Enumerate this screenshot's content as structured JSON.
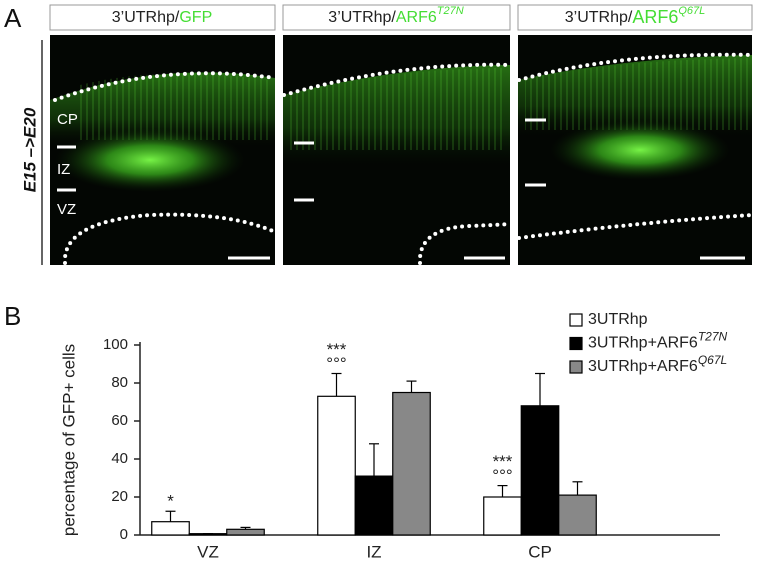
{
  "panel_a": {
    "label": "A",
    "condition": "E15 –>E20",
    "panels": [
      {
        "prefix": "3’UTRhp/",
        "name": "GFP"
      },
      {
        "prefix": "3’UTRhp/",
        "name": "ARF6",
        "sup": "T27N"
      },
      {
        "prefix": "3’UTRhp/",
        "name": "ARF6",
        "sup": "Q67L"
      }
    ],
    "layers": [
      "CP",
      "IZ",
      "VZ"
    ]
  },
  "chart_data": {
    "type": "bar",
    "label": "B",
    "y_label": "percentage of GFP+ cells",
    "categories": [
      "VZ",
      "IZ",
      "CP"
    ],
    "ylim": [
      0,
      100
    ],
    "yticks": [
      0,
      20,
      40,
      60,
      80,
      100
    ],
    "series": [
      {
        "name": "3UTRhp",
        "color": "#ffffff",
        "values": [
          7,
          73,
          20
        ],
        "errors": [
          5.5,
          12,
          6
        ],
        "significance": [
          [
            "*"
          ],
          [
            "***",
            "°°°"
          ],
          [
            "***",
            "°°°"
          ]
        ]
      },
      {
        "name": "3UTRhp+ARF6",
        "sup": "T27N",
        "color": "#000000",
        "values": [
          0.7,
          31,
          68
        ],
        "errors": [
          0,
          17,
          17
        ]
      },
      {
        "name": "3UTRhp+ARF6",
        "sup": "Q67L",
        "color": "#888888",
        "values": [
          3,
          75,
          21
        ],
        "errors": [
          1,
          6,
          7
        ]
      }
    ]
  }
}
